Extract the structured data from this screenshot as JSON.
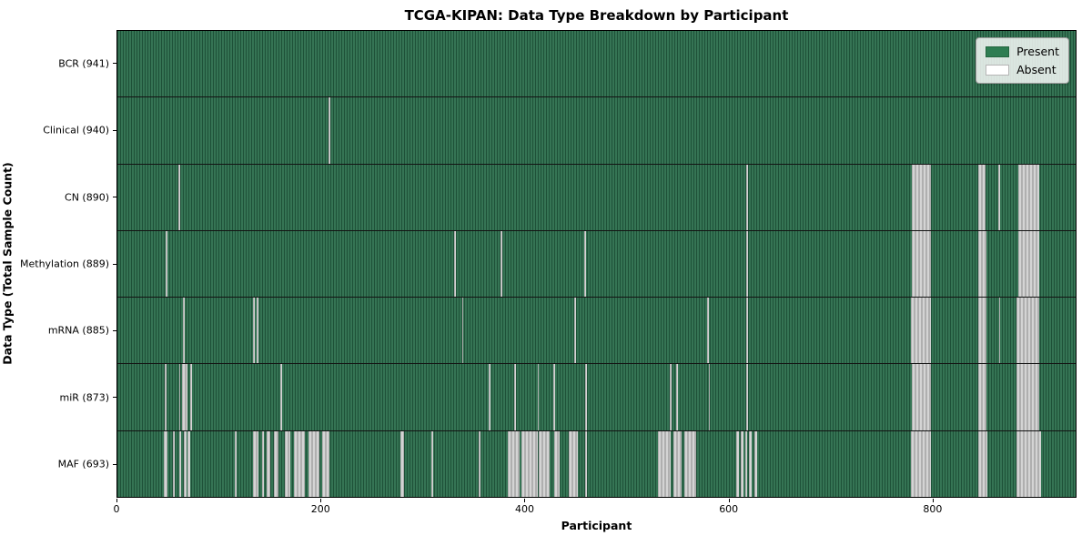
{
  "chart_data": {
    "type": "heatmap",
    "title": "TCGA-KIPAN: Data Type Breakdown by Participant",
    "xlabel": "Participant",
    "ylabel": "Data Type (Total Sample Count)",
    "x_range": [
      0,
      941
    ],
    "x_ticks": [
      0,
      200,
      400,
      600,
      800
    ],
    "grid": false,
    "legend_position": "upper right",
    "legend": [
      {
        "label": "Present",
        "color": "#2e7d52",
        "border": "#24663f"
      },
      {
        "label": "Absent",
        "color": "#ffffff",
        "border": "#b5b5b5"
      }
    ],
    "colors": {
      "present_fill": "#2e6e4e",
      "absent_fill": "#c9c9c9",
      "row_separator": "#131313",
      "plot_border": "#000000"
    },
    "rows": [
      {
        "label": "BCR (941)",
        "absent_ranges": []
      },
      {
        "label": "Clinical (940)",
        "absent_ranges": [
          [
            207.5,
            209
          ]
        ]
      },
      {
        "label": "CN (890)",
        "absent_ranges": [
          [
            60,
            62
          ],
          [
            617.5,
            619
          ],
          [
            780,
            798.5
          ],
          [
            845.5,
            852.5
          ],
          [
            865,
            866.5
          ],
          [
            884.5,
            905.5
          ]
        ]
      },
      {
        "label": "Methylation (889)",
        "absent_ranges": [
          [
            47.5,
            49
          ],
          [
            330.5,
            332
          ],
          [
            376.5,
            378
          ],
          [
            458.5,
            460
          ],
          [
            617.5,
            619
          ],
          [
            780,
            798.5
          ],
          [
            845.5,
            853
          ],
          [
            884.5,
            905.5
          ]
        ]
      },
      {
        "label": "mRNA (885)",
        "absent_ranges": [
          [
            64.5,
            66
          ],
          [
            133.5,
            135
          ],
          [
            137,
            138.5
          ],
          [
            338.5,
            340
          ],
          [
            448.5,
            450
          ],
          [
            579.5,
            581
          ],
          [
            617.5,
            619
          ],
          [
            779.5,
            798.5
          ],
          [
            845.5,
            853
          ],
          [
            865.5,
            867
          ],
          [
            883,
            905.5
          ]
        ]
      },
      {
        "label": "miR (873)",
        "absent_ranges": [
          [
            46.5,
            48
          ],
          [
            60.5,
            62
          ],
          [
            63.5,
            68.5
          ],
          [
            71.5,
            73
          ],
          [
            160,
            161.5
          ],
          [
            364.5,
            366
          ],
          [
            389.5,
            391
          ],
          [
            412.5,
            414
          ],
          [
            428,
            429.5
          ],
          [
            459.5,
            461
          ],
          [
            542.5,
            544.5
          ],
          [
            548.5,
            550.5
          ],
          [
            580.5,
            582
          ],
          [
            617.5,
            619
          ],
          [
            780,
            798.5
          ],
          [
            845.5,
            853
          ],
          [
            883,
            905.5
          ]
        ]
      },
      {
        "label": "MAF (693)",
        "absent_ranges": [
          [
            46,
            49.5
          ],
          [
            54.5,
            56
          ],
          [
            60.5,
            63
          ],
          [
            65.5,
            67.5
          ],
          [
            68.5,
            71.5
          ],
          [
            115.5,
            117
          ],
          [
            133.5,
            138.5
          ],
          [
            142.5,
            144
          ],
          [
            146.5,
            150.5
          ],
          [
            153.5,
            158
          ],
          [
            164.5,
            170
          ],
          [
            173.5,
            184.5
          ],
          [
            188,
            198
          ],
          [
            201.5,
            208.5
          ],
          [
            277.5,
            281.5
          ],
          [
            308.5,
            310
          ],
          [
            355,
            357
          ],
          [
            383.5,
            395
          ],
          [
            396.5,
            412.5
          ],
          [
            414,
            424.5
          ],
          [
            429,
            434.5
          ],
          [
            443.5,
            452.5
          ],
          [
            459,
            461
          ],
          [
            530.5,
            543.5
          ],
          [
            546,
            554.5
          ],
          [
            556.5,
            568.5
          ],
          [
            607.5,
            610
          ],
          [
            612.5,
            614.5
          ],
          [
            616.5,
            618.5
          ],
          [
            620.5,
            623
          ],
          [
            625.5,
            628.5
          ],
          [
            779.5,
            799
          ],
          [
            845.5,
            854
          ],
          [
            883,
            907
          ]
        ]
      }
    ]
  }
}
